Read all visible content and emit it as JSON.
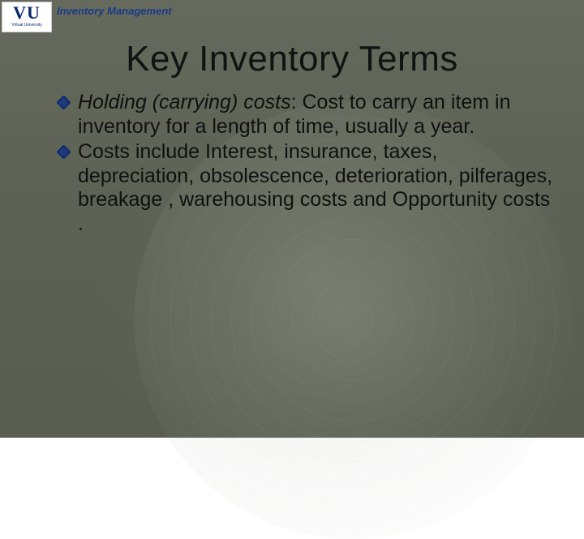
{
  "header": {
    "logo_main": "VU",
    "logo_sub": "Virtual University",
    "label": "Inventory Management"
  },
  "title": "Key Inventory Terms",
  "bullets": [
    {
      "runs": [
        {
          "text": "Holding (carrying) costs",
          "italic": true
        },
        {
          "text": ": Cost to carry an item in inventory for a length of time, usually a year.",
          "italic": false
        }
      ]
    },
    {
      "runs": [
        {
          "text": "Costs include Interest, insurance, taxes, depreciation, obsolescence, deterioration, pilferages, breakage , warehousing costs and Opportunity costs .",
          "italic": false
        }
      ]
    }
  ],
  "colors": {
    "bg_top": "#656a5d",
    "bg_bottom": "#585d50",
    "accent": "#0c2a6e",
    "title_color": "#121212",
    "body_color": "#101010",
    "header_label_color": "#1a3a8a"
  },
  "typography": {
    "title_fontsize": 44,
    "body_fontsize": 25,
    "header_label_fontsize": 13
  }
}
